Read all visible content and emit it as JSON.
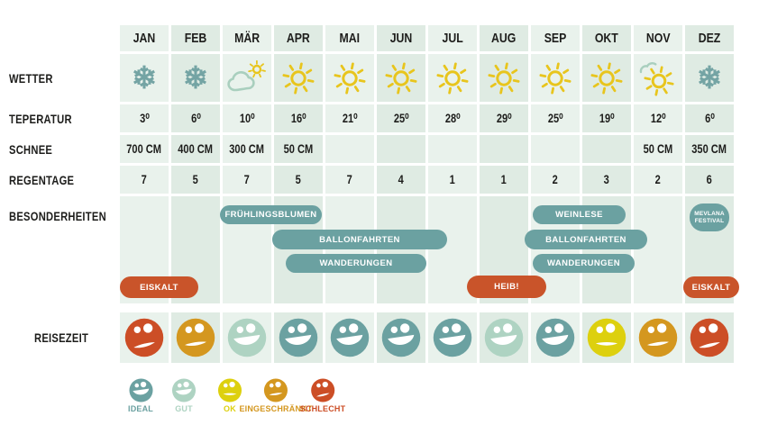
{
  "columns": [
    "JAN",
    "FEB",
    "MÄR",
    "APR",
    "MAI",
    "JUN",
    "JUL",
    "AUG",
    "SEP",
    "OKT",
    "NOV",
    "DEZ"
  ],
  "rows": {
    "wetter": {
      "label": "WETTER",
      "icons": [
        "snowflake",
        "snowflake",
        "cloud-sun",
        "sun",
        "sun",
        "sun",
        "sun",
        "sun",
        "sun",
        "sun",
        "sun-cloud",
        "snowflake"
      ]
    },
    "teperatur": {
      "label": "TEPERATUR",
      "values": [
        "3⁰",
        "6⁰",
        "10⁰",
        "16⁰",
        "21⁰",
        "25⁰",
        "28⁰",
        "29⁰",
        "25⁰",
        "19⁰",
        "12⁰",
        "6⁰"
      ]
    },
    "schnee": {
      "label": "SCHNEE",
      "values": [
        "700 CM",
        "400 CM",
        "300 CM",
        "50 CM",
        "",
        "",
        "",
        "",
        "",
        "",
        "50 CM",
        "350 CM"
      ]
    },
    "regentage": {
      "label": "REGENTAGE",
      "values": [
        "7",
        "5",
        "7",
        "5",
        "7",
        "4",
        "1",
        "1",
        "2",
        "3",
        "2",
        "6"
      ]
    },
    "besonderheiten": {
      "label": "BESONDERHEITEN",
      "pills": [
        {
          "text": "FRÜHLINGSBLUMEN",
          "color": "teal"
        },
        {
          "text": "WEINLESE",
          "color": "teal"
        },
        {
          "text": "MEVLANA FESTIVAL",
          "color": "teal"
        },
        {
          "text": "BALLONFAHRTEN",
          "color": "teal"
        },
        {
          "text": "BALLONFAHRTEN",
          "color": "teal"
        },
        {
          "text": "WANDERUNGEN",
          "color": "teal"
        },
        {
          "text": "WANDERUNGEN",
          "color": "teal"
        },
        {
          "text": "EISKALT",
          "color": "orange"
        },
        {
          "text": "HEIB!",
          "color": "orange"
        },
        {
          "text": "EISKALT",
          "color": "orange"
        }
      ]
    },
    "reisezeit": {
      "label": "REISEZEIT",
      "ratings": [
        "schlecht",
        "eingeschraenkt",
        "gut",
        "ideal",
        "ideal",
        "ideal",
        "ideal",
        "gut",
        "ideal",
        "ok",
        "eingeschraenkt",
        "schlecht"
      ]
    }
  },
  "legend": {
    "items": [
      {
        "label": "IDEAL",
        "rating": "ideal"
      },
      {
        "label": "GUT",
        "rating": "gut"
      },
      {
        "label": "OK",
        "rating": "ok"
      },
      {
        "label": "EINGESCHRÄNKT",
        "rating": "eingeschraenkt"
      },
      {
        "label": "SCHLECHT",
        "rating": "schlecht"
      }
    ]
  },
  "colors": {
    "ratings": {
      "ideal": "#6ba1a1",
      "gut": "#aed3c2",
      "ok": "#ddd00e",
      "eingeschraenkt": "#d4971f",
      "schlecht": "#cc4e26"
    },
    "pill_teal": "#6ba1a1",
    "pill_orange": "#c9542a",
    "sun": "#e8c51d",
    "snowflake": "#74a4a4",
    "cloud": "#a9cfbe",
    "cell_light": "#e9f2ec",
    "cell_dark": "#dfebe3",
    "text": "#1d1d1b"
  },
  "chart_data": {
    "type": "table",
    "title": "",
    "categories": [
      "JAN",
      "FEB",
      "MÄR",
      "APR",
      "MAI",
      "JUN",
      "JUL",
      "AUG",
      "SEP",
      "OKT",
      "NOV",
      "DEZ"
    ],
    "series": [
      {
        "name": "WETTER",
        "values": [
          "snowflake",
          "snowflake",
          "cloud-sun",
          "sun",
          "sun",
          "sun",
          "sun",
          "sun",
          "sun",
          "sun",
          "sun-cloud",
          "snowflake"
        ]
      },
      {
        "name": "TEPERATUR",
        "values": [
          3,
          6,
          10,
          16,
          21,
          25,
          28,
          29,
          25,
          19,
          12,
          6
        ]
      },
      {
        "name": "SCHNEE_CM",
        "values": [
          700,
          400,
          300,
          50,
          null,
          null,
          null,
          null,
          null,
          null,
          50,
          350
        ]
      },
      {
        "name": "REGENTAGE",
        "values": [
          7,
          5,
          7,
          5,
          7,
          4,
          1,
          1,
          2,
          3,
          2,
          6
        ]
      },
      {
        "name": "REISEZEIT",
        "values": [
          "schlecht",
          "eingeschraenkt",
          "gut",
          "ideal",
          "ideal",
          "ideal",
          "ideal",
          "gut",
          "ideal",
          "ok",
          "eingeschraenkt",
          "schlecht"
        ]
      }
    ],
    "annotations": [
      {
        "text": "EISKALT",
        "months": "JAN-FEB"
      },
      {
        "text": "FRÜHLINGSBLUMEN",
        "months": "MÄR-APR"
      },
      {
        "text": "BALLONFAHRTEN",
        "months": "APR-JUN"
      },
      {
        "text": "WANDERUNGEN",
        "months": "APR-JUN"
      },
      {
        "text": "HEIB!",
        "months": "JUL-AUG"
      },
      {
        "text": "WEINLESE",
        "months": "SEP-OKT"
      },
      {
        "text": "BALLONFAHRTEN",
        "months": "SEP-OKT"
      },
      {
        "text": "WANDERUNGEN",
        "months": "SEP-OKT"
      },
      {
        "text": "MEVLANA FESTIVAL",
        "months": "DEZ"
      },
      {
        "text": "EISKALT",
        "months": "DEZ"
      }
    ]
  }
}
